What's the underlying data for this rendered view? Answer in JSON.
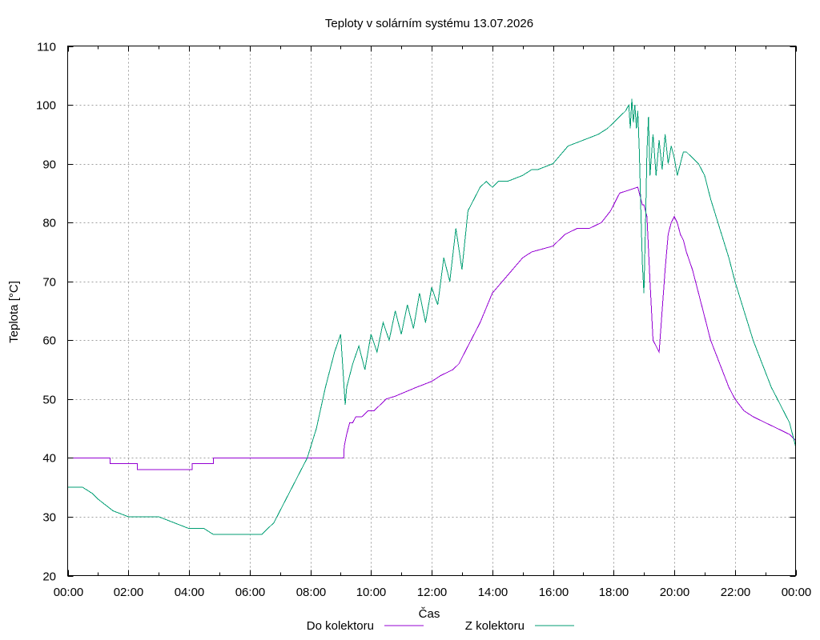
{
  "chart_data": {
    "type": "line",
    "title": "Teploty v solárním systému 13.07.2026",
    "xlabel": "Čas",
    "ylabel": "Teplota [°C]",
    "x_unit": "hours",
    "xlim": [
      0,
      24
    ],
    "ylim": [
      20,
      110
    ],
    "yticks": [
      20,
      30,
      40,
      50,
      60,
      70,
      80,
      90,
      100,
      110
    ],
    "xticks": [
      {
        "value": 0,
        "label": "00:00"
      },
      {
        "value": 2,
        "label": "02:00"
      },
      {
        "value": 4,
        "label": "04:00"
      },
      {
        "value": 6,
        "label": "06:00"
      },
      {
        "value": 8,
        "label": "08:00"
      },
      {
        "value": 10,
        "label": "10:00"
      },
      {
        "value": 12,
        "label": "12:00"
      },
      {
        "value": 14,
        "label": "14:00"
      },
      {
        "value": 16,
        "label": "16:00"
      },
      {
        "value": 18,
        "label": "18:00"
      },
      {
        "value": 20,
        "label": "20:00"
      },
      {
        "value": 22,
        "label": "22:00"
      },
      {
        "value": 24,
        "label": "00:00"
      }
    ],
    "grid": true,
    "legend_position": "bottom-center",
    "series": [
      {
        "name": "Do kolektoru",
        "color": "#9400d3",
        "x": [
          0,
          1.4,
          1.4,
          2.3,
          2.3,
          4.1,
          4.1,
          4.8,
          4.8,
          6.3,
          9.1,
          9.12,
          9.2,
          9.3,
          9.4,
          9.5,
          9.7,
          9.9,
          10.1,
          10.3,
          10.5,
          10.8,
          11.5,
          12.0,
          12.3,
          12.7,
          12.9,
          13.2,
          13.6,
          14.0,
          14.5,
          15.0,
          15.3,
          16.0,
          16.4,
          16.8,
          17.2,
          17.6,
          17.9,
          18.0,
          18.1,
          18.2,
          18.8,
          18.85,
          18.9,
          18.95,
          19.0,
          19.1,
          19.2,
          19.3,
          19.5,
          19.7,
          19.8,
          19.9,
          20.0,
          20.1,
          20.2,
          20.3,
          20.4,
          20.6,
          20.8,
          21.0,
          21.2,
          21.5,
          21.8,
          22.0,
          22.3,
          22.6,
          23.0,
          23.4,
          23.8,
          24.0
        ],
        "values": [
          40,
          40,
          39,
          39,
          38,
          38,
          39,
          39,
          40,
          40,
          40,
          42,
          44,
          46,
          46,
          47,
          47,
          48,
          48,
          49,
          50,
          50.5,
          52,
          53,
          54,
          55,
          56,
          59,
          63,
          68,
          71,
          74,
          75,
          76,
          78,
          79,
          79,
          80,
          82,
          83,
          84,
          85,
          86,
          85,
          84,
          83,
          83,
          81,
          70,
          60,
          58,
          72,
          78,
          80,
          81,
          80,
          78,
          77,
          75,
          72,
          68,
          64,
          60,
          56,
          52,
          50,
          48,
          47,
          46,
          45,
          44,
          43
        ]
      },
      {
        "name": "Z kolektoru",
        "color": "#009e73",
        "x": [
          0,
          0.5,
          0.8,
          1.0,
          1.5,
          2.0,
          2.5,
          3.0,
          3.5,
          4.0,
          4.3,
          4.5,
          4.8,
          5.0,
          5.5,
          6.0,
          6.4,
          6.8,
          7.0,
          7.3,
          7.6,
          7.9,
          8.2,
          8.5,
          8.8,
          9.0,
          9.1,
          9.15,
          9.2,
          9.4,
          9.6,
          9.8,
          10.0,
          10.2,
          10.4,
          10.6,
          10.8,
          11.0,
          11.2,
          11.4,
          11.6,
          11.8,
          12.0,
          12.2,
          12.4,
          12.6,
          12.8,
          13.0,
          13.2,
          13.4,
          13.6,
          13.8,
          14.0,
          14.2,
          14.5,
          15.0,
          15.3,
          15.5,
          16.0,
          16.5,
          17.0,
          17.5,
          17.8,
          18.0,
          18.2,
          18.4,
          18.5,
          18.55,
          18.6,
          18.65,
          18.7,
          18.75,
          18.8,
          18.85,
          18.9,
          18.95,
          19.0,
          19.05,
          19.1,
          19.15,
          19.2,
          19.3,
          19.4,
          19.5,
          19.6,
          19.7,
          19.8,
          19.9,
          20.0,
          20.1,
          20.2,
          20.3,
          20.4,
          20.6,
          20.8,
          21.0,
          21.2,
          21.5,
          21.8,
          22.0,
          22.3,
          22.6,
          22.9,
          23.2,
          23.5,
          23.8,
          24.0
        ],
        "values": [
          35,
          35,
          34,
          33,
          31,
          30,
          30,
          30,
          29,
          28,
          28,
          28,
          27,
          27,
          27,
          27,
          27,
          29,
          31,
          34,
          37,
          40,
          45,
          52,
          58,
          61,
          53,
          49,
          52,
          56,
          59,
          55,
          61,
          58,
          63,
          60,
          65,
          61,
          66,
          62,
          68,
          63,
          69,
          66,
          74,
          70,
          79,
          72,
          82,
          84,
          86,
          87,
          86,
          87,
          87,
          88,
          89,
          89,
          90,
          93,
          94,
          95,
          96,
          97,
          98,
          99,
          100,
          96,
          101,
          97,
          100,
          96,
          99,
          92,
          82,
          73,
          68,
          79,
          92,
          98,
          88,
          95,
          88,
          94,
          89,
          95,
          90,
          93,
          91,
          88,
          90,
          92,
          92,
          91,
          90,
          88,
          84,
          79,
          74,
          70,
          65,
          60,
          56,
          52,
          49,
          46,
          42
        ]
      }
    ]
  }
}
